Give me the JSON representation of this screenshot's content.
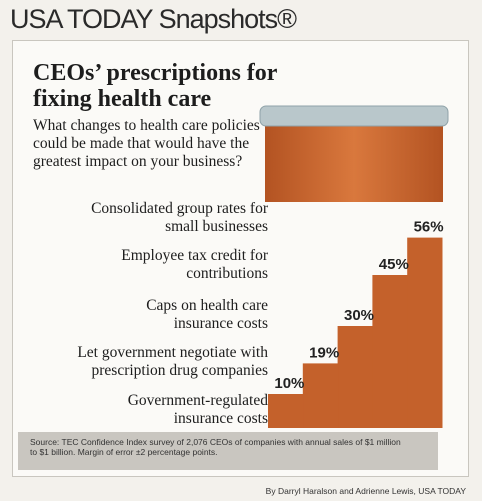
{
  "header": "USA TODAY Snapshots®",
  "chart_data": {
    "type": "bar",
    "title": "CEOs’ prescriptions for fixing health care",
    "subtitle": "What changes to health care policies could be made that would have the greatest impact on your business?",
    "categories": [
      "Consolidated group rates for small businesses",
      "Employee tax credit for contributions",
      "Caps on health care insurance costs",
      "Let government negotiate with prescription drug companies",
      "Government-regulated insurance costs"
    ],
    "values": [
      56,
      45,
      30,
      19,
      10
    ],
    "value_labels": [
      "56%",
      "45%",
      "30%",
      "19%",
      "10%"
    ],
    "color": "#c4612b"
  },
  "source": "Source: TEC Confidence Index survey of 2,076 CEOs of companies with annual sales of $1 million to $1 billion. Margin of error ±2 percentage points.",
  "byline": "By Darryl Haralson and Adrienne Lewis, USA TODAY"
}
